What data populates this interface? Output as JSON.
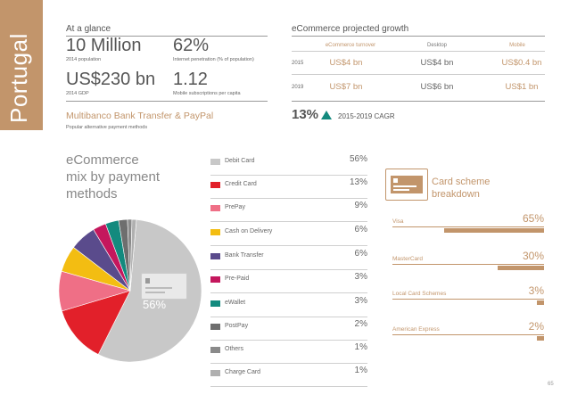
{
  "sidebar": {
    "country": "Portugal"
  },
  "glance": {
    "title": "At a glance",
    "stats": [
      {
        "value": "10 Million",
        "label": "2014 population"
      },
      {
        "value": "62%",
        "label": "Internet penetration (% of population)"
      },
      {
        "value": "US$230 bn",
        "label": "2014 GDP"
      },
      {
        "value": "1.12",
        "label": "Mobile subscriptions per capita"
      }
    ],
    "alt_payment": {
      "value": "Multibanco Bank Transfer & PayPal",
      "label": "Popular alternative payment methods"
    }
  },
  "growth": {
    "title": "eCommerce projected growth",
    "headers": [
      "eCommerce turnover",
      "Desktop",
      "Mobile"
    ],
    "rows": [
      {
        "year": "2015",
        "turnover": "US$4 bn",
        "desktop": "US$4 bn",
        "mobile": "US$0.4 bn"
      },
      {
        "year": "2019",
        "turnover": "US$7 bn",
        "desktop": "US$6 bn",
        "mobile": "US$1 bn"
      }
    ],
    "cagr_value": "13%",
    "cagr_label": "2015-2019 CAGR"
  },
  "mix": {
    "title_lines": [
      "eCommerce",
      "mix by payment",
      "methods"
    ],
    "card_pct": "56%",
    "items": [
      {
        "label": "Debit Card",
        "pct": "56%",
        "value": 56,
        "color": "#c8c8c8"
      },
      {
        "label": "Credit Card",
        "pct": "13%",
        "value": 13,
        "color": "#e2202a"
      },
      {
        "label": "PrePay",
        "pct": "9%",
        "value": 9,
        "color": "#ef6f86"
      },
      {
        "label": "Cash on Delivery",
        "pct": "6%",
        "value": 6,
        "color": "#f3bd12"
      },
      {
        "label": "Bank Transfer",
        "pct": "6%",
        "value": 6,
        "color": "#5a4b8c"
      },
      {
        "label": "Pre-Paid",
        "pct": "3%",
        "value": 3,
        "color": "#c4175d"
      },
      {
        "label": "eWallet",
        "pct": "3%",
        "value": 3,
        "color": "#138a7e"
      },
      {
        "label": "PostPay",
        "pct": "2%",
        "value": 2,
        "color": "#6e6e6e"
      },
      {
        "label": "Others",
        "pct": "1%",
        "value": 1,
        "color": "#8a8a8a"
      },
      {
        "label": "Charge Card",
        "pct": "1%",
        "value": 1,
        "color": "#b0b0b0"
      }
    ]
  },
  "card_scheme": {
    "title_lines": [
      "Card scheme",
      "breakdown"
    ],
    "items": [
      {
        "label": "Visa",
        "pct": "65%",
        "value": 65
      },
      {
        "label": "MasterCard",
        "pct": "30%",
        "value": 30
      },
      {
        "label": "Local Card Schemes",
        "pct": "3%",
        "value": 3
      },
      {
        "label": "American Express",
        "pct": "2%",
        "value": 2
      }
    ]
  },
  "page_number": "65",
  "colors": {
    "accent": "#c2956b"
  }
}
